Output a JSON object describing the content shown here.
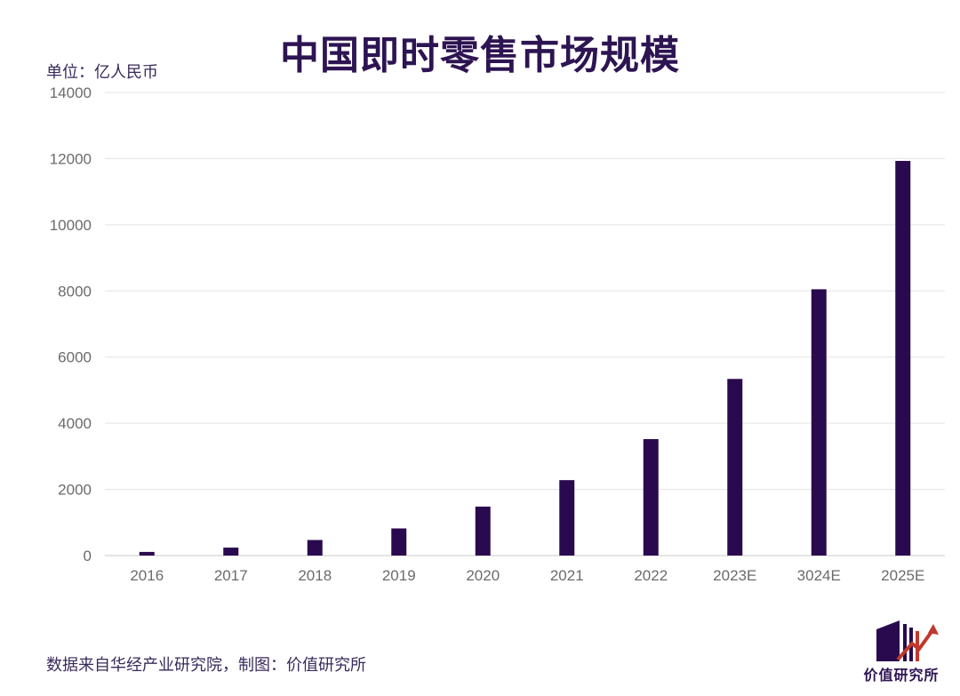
{
  "header": {
    "title": "中国即时零售市场规模",
    "unit_label": "单位：亿人民币"
  },
  "footer": {
    "source": "数据来自华经产业研究院，制图：价值研究所",
    "logo_text": "价值研究所"
  },
  "colors": {
    "bar": "#2a0a4e",
    "title": "#2d1452",
    "grid": "#e3e3e3",
    "logo_accent": "#c0392b"
  },
  "chart_data": {
    "type": "bar",
    "title": "中国即时零售市场规模",
    "ylabel": "单位：亿人民币",
    "xlabel": "",
    "categories": [
      "2016",
      "2017",
      "2018",
      "2019",
      "2020",
      "2021",
      "2022",
      "2023E",
      "3024E",
      "2025E"
    ],
    "values": [
      110,
      240,
      470,
      820,
      1480,
      2280,
      3520,
      5340,
      8050,
      11930
    ],
    "ylim": [
      0,
      14000
    ],
    "yticks": [
      0,
      2000,
      4000,
      6000,
      8000,
      10000,
      12000,
      14000
    ],
    "grid": true,
    "legend": "none"
  }
}
